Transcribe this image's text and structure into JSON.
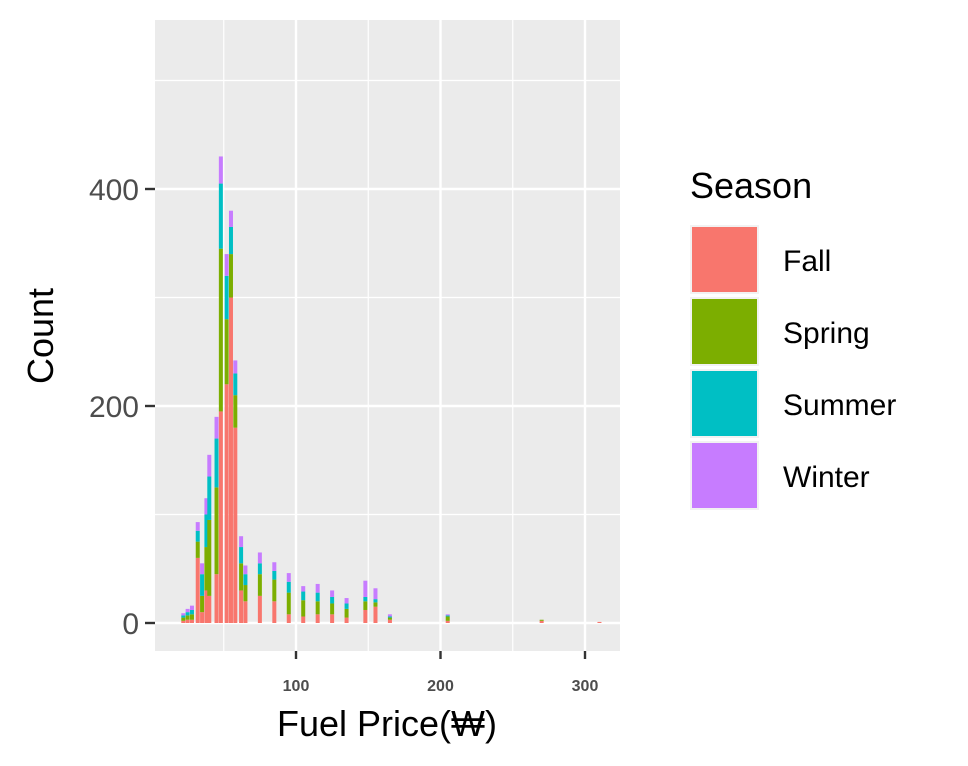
{
  "chart_data": {
    "type": "bar",
    "stacked": true,
    "xlabel": "Fuel Price(₩)",
    "ylabel": "Count",
    "x_ticks": [
      100,
      200,
      300
    ],
    "y_ticks": [
      0,
      200,
      400
    ],
    "xlim": [
      0,
      320
    ],
    "ylim": [
      -25,
      555
    ],
    "grid": true,
    "legend": {
      "title": "Season",
      "position": "right",
      "entries": [
        "Fall",
        "Spring",
        "Summer",
        "Winter"
      ]
    },
    "colors": {
      "Fall": "#F8766D",
      "Spring": "#7CAE00",
      "Summer": "#00BFC4",
      "Winter": "#C77CFF"
    },
    "series": [
      {
        "name": "Fall",
        "x": [
          22,
          25,
          28,
          32,
          35,
          38,
          40,
          45,
          48,
          52,
          55,
          58,
          62,
          65,
          75,
          85,
          95,
          105,
          115,
          125,
          135,
          148,
          155,
          165,
          205,
          270,
          310
        ],
        "values": [
          2,
          3,
          3,
          60,
          10,
          30,
          25,
          45,
          195,
          220,
          300,
          180,
          30,
          20,
          25,
          20,
          8,
          6,
          8,
          8,
          5,
          12,
          15,
          3,
          2,
          2,
          1
        ]
      },
      {
        "name": "Spring",
        "x": [
          22,
          25,
          28,
          32,
          35,
          38,
          40,
          45,
          48,
          52,
          55,
          58,
          62,
          65,
          75,
          85,
          95,
          105,
          115,
          125,
          135,
          148,
          155,
          165,
          205,
          270,
          310
        ],
        "values": [
          3,
          4,
          5,
          15,
          15,
          40,
          70,
          80,
          150,
          60,
          40,
          30,
          25,
          15,
          20,
          20,
          20,
          15,
          12,
          10,
          8,
          8,
          4,
          2,
          4,
          1,
          0
        ]
      },
      {
        "name": "Summer",
        "x": [
          22,
          25,
          28,
          32,
          35,
          38,
          40,
          45,
          48,
          52,
          55,
          58,
          62,
          65,
          75,
          85,
          95,
          105,
          115,
          125,
          135,
          148,
          155,
          165,
          205,
          270,
          310
        ],
        "values": [
          2,
          3,
          4,
          10,
          20,
          30,
          40,
          45,
          60,
          40,
          25,
          20,
          15,
          10,
          10,
          8,
          10,
          8,
          8,
          6,
          5,
          4,
          3,
          1,
          1,
          0,
          0
        ]
      },
      {
        "name": "Winter",
        "x": [
          22,
          25,
          28,
          32,
          35,
          38,
          40,
          45,
          48,
          52,
          55,
          58,
          62,
          65,
          75,
          85,
          95,
          105,
          115,
          125,
          135,
          148,
          155,
          165,
          205,
          270,
          310
        ],
        "values": [
          2,
          3,
          4,
          8,
          10,
          15,
          20,
          20,
          25,
          20,
          15,
          12,
          10,
          8,
          10,
          8,
          8,
          5,
          8,
          6,
          5,
          15,
          10,
          2,
          1,
          0,
          0
        ]
      }
    ]
  }
}
